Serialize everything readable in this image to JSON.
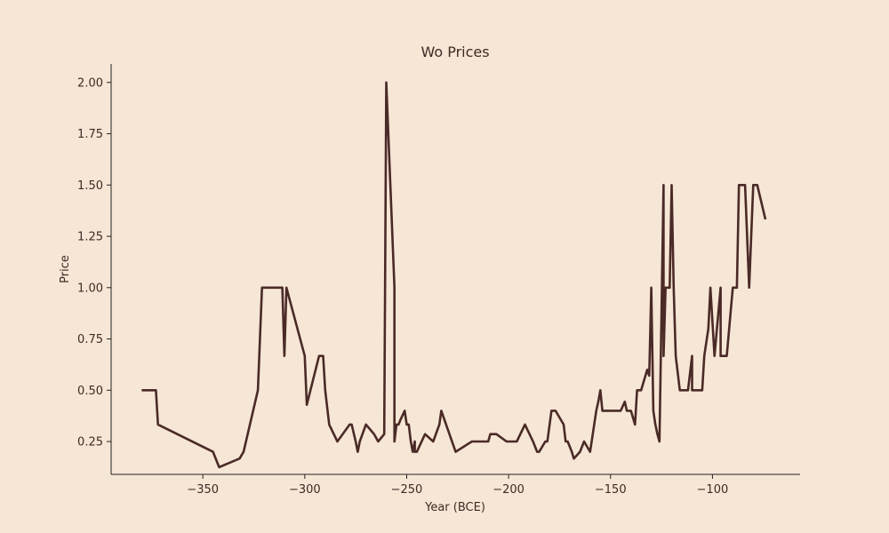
{
  "chart_data": {
    "type": "line",
    "title": "Wo Prices",
    "xlabel": "Year (BCE)",
    "ylabel": "Price",
    "xlim": [
      -395,
      -57
    ],
    "ylim": [
      0.09,
      2.09
    ],
    "xticks": [
      -350,
      -300,
      -250,
      -200,
      -150,
      -100
    ],
    "xtick_labels": [
      "−350",
      "−300",
      "−250",
      "−200",
      "−150",
      "−100"
    ],
    "yticks": [
      0.25,
      0.5,
      0.75,
      1.0,
      1.25,
      1.5,
      1.75,
      2.0
    ],
    "ytick_labels": [
      "0.25",
      "0.50",
      "0.75",
      "1.00",
      "1.25",
      "1.50",
      "1.75",
      "2.00"
    ],
    "grid": false,
    "line_color": "#4a2a27",
    "series": [
      {
        "x": [
          -380,
          -373,
          -372,
          -345,
          -342,
          -332,
          -330,
          -323,
          -321,
          -311,
          -310,
          -309,
          -300,
          -299,
          -293,
          -291,
          -290,
          -288,
          -284,
          -278,
          -277,
          -275,
          -274,
          -273,
          -270,
          -266,
          -264,
          -261,
          -260,
          -258,
          -256,
          -256,
          -255,
          -254,
          -253,
          -251,
          -250,
          -249,
          -248,
          -247,
          -246,
          -246,
          -245,
          -241,
          -237,
          -234,
          -233,
          -226,
          -218,
          -210,
          -209,
          -207,
          -206,
          -201,
          -196,
          -192,
          -188,
          -186,
          -185,
          -182,
          -181,
          -179,
          -177,
          -173,
          -172,
          -171,
          -169,
          -168,
          -165,
          -163,
          -160,
          -158,
          -157,
          -156,
          -155,
          -154,
          -145,
          -143,
          -142,
          -141,
          -140,
          -138,
          -137,
          -136,
          -135,
          -132,
          -131,
          -130,
          -129,
          -128,
          -127,
          -126,
          -124,
          -124,
          -123,
          -122,
          -121,
          -120,
          -119,
          -118,
          -116,
          -112,
          -110,
          -110,
          -108,
          -106,
          -105,
          -104,
          -102,
          -101,
          -99,
          -96,
          -96,
          -94,
          -93,
          -90,
          -88,
          -87,
          -84,
          -82,
          -80,
          -78,
          -74
        ],
        "y": [
          0.5,
          0.5,
          0.333,
          0.2,
          0.125,
          0.167,
          0.2,
          0.5,
          1.0,
          1.0,
          0.667,
          1.0,
          0.667,
          0.429,
          0.667,
          0.667,
          0.5,
          0.333,
          0.25,
          0.333,
          0.333,
          0.25,
          0.2,
          0.25,
          0.333,
          0.286,
          0.25,
          0.286,
          2.0,
          1.5,
          1.0,
          0.25,
          0.333,
          0.333,
          0.357,
          0.4,
          0.333,
          0.333,
          0.25,
          0.2,
          0.25,
          0.2,
          0.2,
          0.286,
          0.25,
          0.333,
          0.4,
          0.2,
          0.25,
          0.25,
          0.286,
          0.286,
          0.286,
          0.25,
          0.25,
          0.333,
          0.25,
          0.2,
          0.2,
          0.25,
          0.25,
          0.4,
          0.4,
          0.333,
          0.25,
          0.25,
          0.2,
          0.167,
          0.2,
          0.25,
          0.2,
          0.333,
          0.4,
          0.444,
          0.5,
          0.4,
          0.4,
          0.444,
          0.4,
          0.4,
          0.4,
          0.333,
          0.5,
          0.5,
          0.5,
          0.6,
          0.571,
          1.0,
          0.4,
          0.333,
          0.286,
          0.25,
          1.5,
          0.667,
          1.0,
          1.0,
          1.0,
          1.5,
          1.0,
          0.667,
          0.5,
          0.5,
          0.667,
          0.5,
          0.5,
          0.5,
          0.5,
          0.667,
          0.8,
          1.0,
          0.667,
          1.0,
          0.667,
          0.667,
          0.667,
          1.0,
          1.0,
          1.5,
          1.5,
          1.0,
          1.5,
          1.5,
          1.333
        ]
      }
    ]
  }
}
